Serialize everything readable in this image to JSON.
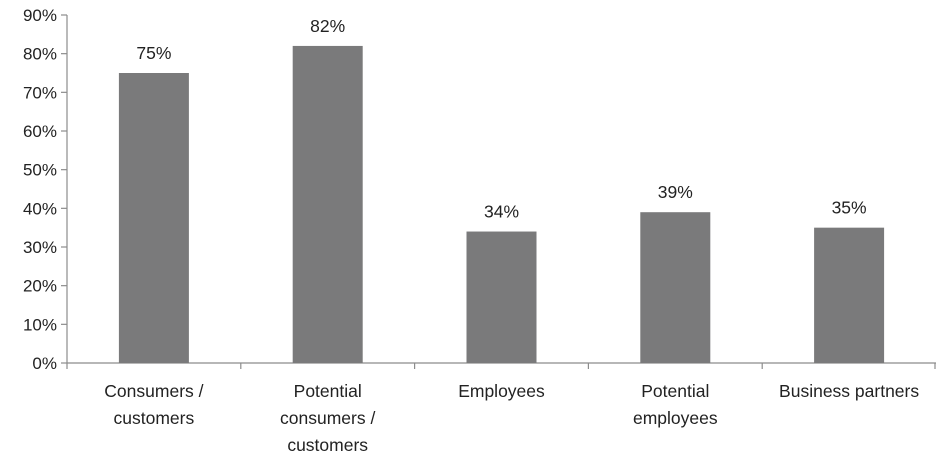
{
  "chart_data": {
    "type": "bar",
    "title": "",
    "xlabel": "",
    "ylabel": "",
    "categories": [
      [
        "Consumers /",
        "customers"
      ],
      [
        "Potential",
        "consumers /",
        "customers"
      ],
      [
        "Employees"
      ],
      [
        "Potential",
        "employees"
      ],
      [
        "Business partners"
      ]
    ],
    "values": [
      75,
      82,
      34,
      39,
      35
    ],
    "value_labels": [
      "75%",
      "82%",
      "34%",
      "39%",
      "35%"
    ],
    "ylim": [
      0,
      90
    ],
    "yticks": [
      0,
      10,
      20,
      30,
      40,
      50,
      60,
      70,
      80,
      90
    ],
    "ytick_labels": [
      "0%",
      "10%",
      "20%",
      "30%",
      "40%",
      "50%",
      "60%",
      "70%",
      "80%",
      "90%"
    ],
    "grid": false,
    "legend": "none",
    "colors": {
      "bar": "#7a7a7b",
      "axis": "#8c8c8c",
      "text": "#222222"
    }
  }
}
